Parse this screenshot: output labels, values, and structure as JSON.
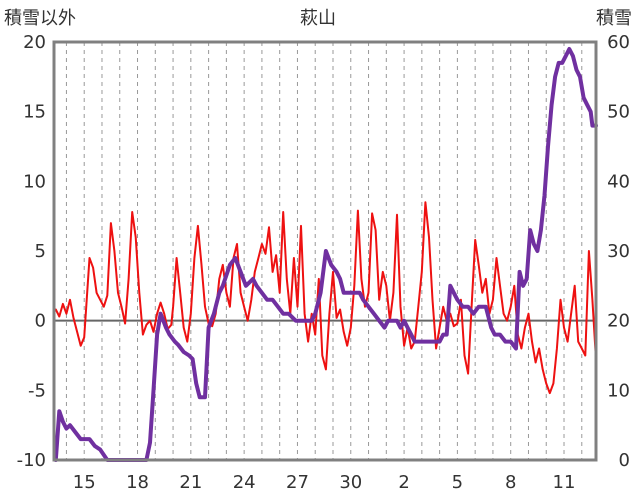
{
  "chart_data": {
    "type": "line",
    "title": "萩山",
    "ylabel_left": "積雪以外",
    "ylabel_right": "積雪",
    "x_ticks": [
      "15",
      "18",
      "21",
      "24",
      "27",
      "30",
      "2",
      "5",
      "8",
      "11"
    ],
    "y_left_ticks": [
      "20",
      "15",
      "10",
      "5",
      "0",
      "-5",
      "-10"
    ],
    "y_right_ticks": [
      "60",
      "50",
      "40",
      "30",
      "20",
      "10",
      "0"
    ],
    "y_left_range": [
      -10,
      20
    ],
    "y_right_range": [
      0,
      60
    ],
    "x_range": [
      13.3,
      43.8
    ],
    "grid": "dashed vertical daily, solid horizontal at 0",
    "colors": {
      "other": "#ee1111",
      "snow": "#7030a0",
      "zero_line": "#666666",
      "frame": "#808080"
    },
    "series": [
      {
        "axis": "left",
        "points": [
          [
            13.4,
            0.8
          ],
          [
            13.6,
            0.3
          ],
          [
            13.8,
            1.2
          ],
          [
            14.0,
            0.5
          ],
          [
            14.2,
            1.5
          ],
          [
            14.4,
            0.2
          ],
          [
            14.6,
            -0.8
          ],
          [
            14.8,
            -1.8
          ],
          [
            15.0,
            -1.2
          ],
          [
            15.3,
            4.5
          ],
          [
            15.5,
            3.8
          ],
          [
            15.7,
            2.0
          ],
          [
            15.9,
            1.5
          ],
          [
            16.1,
            1.0
          ],
          [
            16.3,
            1.8
          ],
          [
            16.5,
            7.0
          ],
          [
            16.7,
            5.0
          ],
          [
            16.9,
            2.0
          ],
          [
            17.1,
            1.0
          ],
          [
            17.3,
            -0.2
          ],
          [
            17.5,
            3.0
          ],
          [
            17.7,
            7.8
          ],
          [
            17.9,
            6.0
          ],
          [
            18.1,
            2.0
          ],
          [
            18.3,
            -1.0
          ],
          [
            18.5,
            -0.3
          ],
          [
            18.7,
            0.0
          ],
          [
            18.9,
            -0.8
          ],
          [
            19.1,
            0.5
          ],
          [
            19.3,
            1.3
          ],
          [
            19.5,
            0.5
          ],
          [
            19.7,
            -0.6
          ],
          [
            19.9,
            -0.3
          ],
          [
            20.0,
            1.0
          ],
          [
            20.2,
            4.5
          ],
          [
            20.4,
            2.0
          ],
          [
            20.6,
            -0.5
          ],
          [
            20.8,
            -1.5
          ],
          [
            21.0,
            0.5
          ],
          [
            21.2,
            4.5
          ],
          [
            21.4,
            6.8
          ],
          [
            21.6,
            4.0
          ],
          [
            21.8,
            1.0
          ],
          [
            22.0,
            -0.2
          ],
          [
            22.2,
            -0.4
          ],
          [
            22.4,
            0.5
          ],
          [
            22.6,
            3.0
          ],
          [
            22.8,
            4.0
          ],
          [
            23.0,
            2.0
          ],
          [
            23.2,
            1.0
          ],
          [
            23.4,
            4.5
          ],
          [
            23.6,
            5.5
          ],
          [
            23.8,
            2.0
          ],
          [
            24.0,
            1.0
          ],
          [
            24.2,
            0.0
          ],
          [
            24.4,
            1.5
          ],
          [
            24.6,
            3.5
          ],
          [
            24.8,
            4.5
          ],
          [
            25.0,
            5.5
          ],
          [
            25.2,
            4.8
          ],
          [
            25.4,
            6.7
          ],
          [
            25.6,
            3.5
          ],
          [
            25.8,
            4.7
          ],
          [
            26.0,
            2.0
          ],
          [
            26.2,
            7.8
          ],
          [
            26.4,
            3.0
          ],
          [
            26.6,
            0.5
          ],
          [
            26.8,
            4.5
          ],
          [
            27.0,
            1.0
          ],
          [
            27.2,
            6.8
          ],
          [
            27.4,
            0.5
          ],
          [
            27.6,
            -1.5
          ],
          [
            27.8,
            0.5
          ],
          [
            28.0,
            -1.0
          ],
          [
            28.2,
            3.0
          ],
          [
            28.4,
            -2.5
          ],
          [
            28.6,
            -3.5
          ],
          [
            28.8,
            0.5
          ],
          [
            29.0,
            3.5
          ],
          [
            29.2,
            0.2
          ],
          [
            29.4,
            0.8
          ],
          [
            29.6,
            -0.8
          ],
          [
            29.8,
            -1.8
          ],
          [
            30.0,
            -0.5
          ],
          [
            30.2,
            2.5
          ],
          [
            30.4,
            7.9
          ],
          [
            30.6,
            3.0
          ],
          [
            30.8,
            1.0
          ],
          [
            31.0,
            2.0
          ],
          [
            31.2,
            7.7
          ],
          [
            31.4,
            6.5
          ],
          [
            31.6,
            1.5
          ],
          [
            31.8,
            3.5
          ],
          [
            32.0,
            2.5
          ],
          [
            32.2,
            0.0
          ],
          [
            32.4,
            2.0
          ],
          [
            32.6,
            7.6
          ],
          [
            32.8,
            1.0
          ],
          [
            33.0,
            -1.8
          ],
          [
            33.2,
            -0.5
          ],
          [
            33.4,
            -2.0
          ],
          [
            33.6,
            -1.5
          ],
          [
            33.8,
            1.0
          ],
          [
            34.0,
            3.5
          ],
          [
            34.2,
            8.5
          ],
          [
            34.4,
            6.0
          ],
          [
            34.6,
            1.5
          ],
          [
            34.8,
            -2.0
          ],
          [
            35.0,
            -0.5
          ],
          [
            35.2,
            1.0
          ],
          [
            35.4,
            0.0
          ],
          [
            35.6,
            0.5
          ],
          [
            35.8,
            -0.4
          ],
          [
            36.0,
            -0.2
          ],
          [
            36.2,
            1.5
          ],
          [
            36.4,
            -2.5
          ],
          [
            36.6,
            -3.8
          ],
          [
            36.8,
            1.0
          ],
          [
            37.0,
            5.8
          ],
          [
            37.2,
            4.0
          ],
          [
            37.4,
            2.0
          ],
          [
            37.6,
            3.0
          ],
          [
            37.8,
            0.5
          ],
          [
            38.0,
            1.5
          ],
          [
            38.2,
            4.5
          ],
          [
            38.4,
            2.5
          ],
          [
            38.6,
            0.5
          ],
          [
            38.8,
            0.0
          ],
          [
            39.0,
            1.0
          ],
          [
            39.2,
            2.5
          ],
          [
            39.4,
            -1.0
          ],
          [
            39.6,
            -2.0
          ],
          [
            39.8,
            -0.5
          ],
          [
            40.0,
            0.5
          ],
          [
            40.2,
            -1.5
          ],
          [
            40.4,
            -3.0
          ],
          [
            40.6,
            -2.0
          ],
          [
            40.8,
            -3.5
          ],
          [
            41.0,
            -4.5
          ],
          [
            41.2,
            -5.2
          ],
          [
            41.4,
            -4.5
          ],
          [
            41.6,
            -2.0
          ],
          [
            41.8,
            1.5
          ],
          [
            42.0,
            -0.5
          ],
          [
            42.2,
            -1.5
          ],
          [
            42.4,
            0.5
          ],
          [
            42.6,
            2.5
          ],
          [
            42.8,
            -1.5
          ],
          [
            43.0,
            -2.0
          ],
          [
            43.2,
            -2.5
          ],
          [
            43.4,
            5.0
          ],
          [
            43.6,
            1.5
          ],
          [
            43.8,
            -2.8
          ]
        ]
      },
      {
        "axis": "right",
        "points": [
          [
            13.4,
            0
          ],
          [
            13.6,
            7
          ],
          [
            13.8,
            5.5
          ],
          [
            14.0,
            4.5
          ],
          [
            14.2,
            5
          ],
          [
            14.5,
            4
          ],
          [
            14.8,
            3
          ],
          [
            15.0,
            3
          ],
          [
            15.3,
            3
          ],
          [
            15.6,
            2
          ],
          [
            15.9,
            1.5
          ],
          [
            16.3,
            0
          ],
          [
            16.8,
            0
          ],
          [
            17.5,
            0
          ],
          [
            18.1,
            0
          ],
          [
            18.3,
            0
          ],
          [
            18.5,
            0
          ],
          [
            18.7,
            2.5
          ],
          [
            18.9,
            10
          ],
          [
            19.1,
            18
          ],
          [
            19.3,
            21
          ],
          [
            19.6,
            19
          ],
          [
            19.8,
            18
          ],
          [
            20.1,
            17
          ],
          [
            20.3,
            16.5
          ],
          [
            20.6,
            15.5
          ],
          [
            20.9,
            15
          ],
          [
            21.1,
            14.5
          ],
          [
            21.3,
            11
          ],
          [
            21.5,
            9
          ],
          [
            21.8,
            9
          ],
          [
            22.0,
            19
          ],
          [
            22.3,
            21
          ],
          [
            22.6,
            24
          ],
          [
            22.8,
            25
          ],
          [
            23.2,
            28
          ],
          [
            23.5,
            29
          ],
          [
            23.8,
            27
          ],
          [
            24.1,
            25
          ],
          [
            24.5,
            26
          ],
          [
            24.7,
            25
          ],
          [
            25.0,
            24
          ],
          [
            25.3,
            23
          ],
          [
            25.6,
            23
          ],
          [
            25.9,
            22
          ],
          [
            26.2,
            21
          ],
          [
            26.5,
            21
          ],
          [
            26.9,
            20
          ],
          [
            27.1,
            20
          ],
          [
            27.3,
            20
          ],
          [
            27.6,
            20
          ],
          [
            27.8,
            20
          ],
          [
            28.0,
            21
          ],
          [
            28.3,
            24
          ],
          [
            28.6,
            30
          ],
          [
            28.9,
            28
          ],
          [
            29.2,
            27
          ],
          [
            29.4,
            26
          ],
          [
            29.6,
            24
          ],
          [
            30.0,
            24
          ],
          [
            30.5,
            24
          ],
          [
            30.7,
            23
          ],
          [
            31.0,
            22
          ],
          [
            31.3,
            21
          ],
          [
            31.6,
            20
          ],
          [
            31.9,
            19
          ],
          [
            32.1,
            20
          ],
          [
            32.4,
            20
          ],
          [
            32.6,
            20
          ],
          [
            32.8,
            19
          ],
          [
            33.0,
            20
          ],
          [
            33.2,
            19
          ],
          [
            33.4,
            18
          ],
          [
            33.6,
            17
          ],
          [
            34.0,
            17
          ],
          [
            34.5,
            17
          ],
          [
            35.0,
            17
          ],
          [
            35.2,
            18
          ],
          [
            35.4,
            18
          ],
          [
            35.6,
            25
          ],
          [
            35.8,
            24
          ],
          [
            36.0,
            23
          ],
          [
            36.3,
            22
          ],
          [
            36.6,
            22
          ],
          [
            36.9,
            21
          ],
          [
            37.2,
            22
          ],
          [
            37.6,
            22
          ],
          [
            37.9,
            19
          ],
          [
            38.1,
            18
          ],
          [
            38.4,
            18
          ],
          [
            38.7,
            17
          ],
          [
            39.0,
            17
          ],
          [
            39.3,
            16
          ],
          [
            39.5,
            27
          ],
          [
            39.7,
            25
          ],
          [
            39.9,
            26
          ],
          [
            40.1,
            33
          ],
          [
            40.3,
            31
          ],
          [
            40.5,
            30
          ],
          [
            40.7,
            33
          ],
          [
            40.9,
            38
          ],
          [
            41.1,
            45
          ],
          [
            41.3,
            51
          ],
          [
            41.5,
            55
          ],
          [
            41.7,
            57
          ],
          [
            41.9,
            57
          ],
          [
            42.1,
            58
          ],
          [
            42.3,
            59
          ],
          [
            42.5,
            58
          ],
          [
            42.7,
            56
          ],
          [
            42.9,
            55
          ],
          [
            43.1,
            52
          ],
          [
            43.3,
            51
          ],
          [
            43.5,
            50
          ],
          [
            43.6,
            48
          ],
          [
            43.8,
            48
          ]
        ]
      }
    ]
  }
}
